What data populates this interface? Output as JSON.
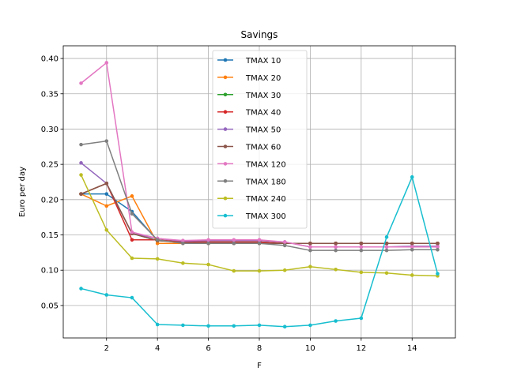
{
  "chart_data": {
    "type": "line",
    "title": "Savings",
    "xlabel": "F",
    "ylabel": "Euro per day",
    "x": [
      1,
      2,
      3,
      4,
      5,
      6,
      7,
      8,
      9,
      10,
      11,
      12,
      13,
      14,
      15
    ],
    "xlim": [
      0.3,
      15.7
    ],
    "ylim": [
      0.004,
      0.418
    ],
    "xticks": [
      2,
      4,
      6,
      8,
      10,
      12,
      14
    ],
    "yticks": [
      0.05,
      0.1,
      0.15,
      0.2,
      0.25,
      0.3,
      0.35,
      0.4
    ],
    "ytick_labels": [
      "0.05",
      "0.10",
      "0.15",
      "0.20",
      "0.25",
      "0.30",
      "0.35",
      "0.40"
    ],
    "grid": true,
    "legend_position": "upper-center",
    "series": [
      {
        "name": "TMAX 10",
        "color": "#1f77b4",
        "values": [
          0.208,
          0.208,
          0.183,
          0.142,
          0.14,
          0.14,
          0.14,
          0.14,
          0.138,
          0.138,
          0.138,
          0.138,
          0.138,
          0.138,
          0.138
        ]
      },
      {
        "name": "TMAX 20",
        "color": "#ff7f0e",
        "values": [
          0.208,
          0.191,
          0.205,
          0.138,
          0.138,
          0.138,
          0.138,
          0.138,
          0.138,
          0.138,
          0.138,
          0.138,
          0.138,
          0.138,
          0.138
        ]
      },
      {
        "name": "TMAX 30",
        "color": "#2ca02c",
        "values": [
          0.208,
          0.223,
          0.152,
          0.142,
          0.14,
          0.14,
          0.14,
          0.14,
          0.138,
          0.138,
          0.138,
          0.138,
          0.138,
          0.138,
          0.138
        ]
      },
      {
        "name": "TMAX 40",
        "color": "#d62728",
        "values": [
          0.208,
          0.223,
          0.143,
          0.143,
          0.14,
          0.14,
          0.14,
          0.14,
          0.138,
          0.138,
          0.138,
          0.138,
          0.138,
          0.138,
          0.138
        ]
      },
      {
        "name": "TMAX 50",
        "color": "#9467bd",
        "values": [
          0.252,
          0.223,
          0.152,
          0.145,
          0.141,
          0.142,
          0.142,
          0.142,
          0.14,
          0.133,
          0.133,
          0.133,
          0.133,
          0.134,
          0.134
        ]
      },
      {
        "name": "TMAX 60",
        "color": "#8c564b",
        "values": [
          0.208,
          0.223,
          0.152,
          0.142,
          0.139,
          0.138,
          0.138,
          0.138,
          0.138,
          0.138,
          0.138,
          0.138,
          0.138,
          0.138,
          0.138
        ]
      },
      {
        "name": "TMAX 120",
        "color": "#e377c2",
        "values": [
          0.365,
          0.394,
          0.154,
          0.145,
          0.142,
          0.143,
          0.143,
          0.143,
          0.14,
          0.133,
          0.133,
          0.133,
          0.133,
          0.133,
          0.133
        ]
      },
      {
        "name": "TMAX 180",
        "color": "#7f7f7f",
        "values": [
          0.278,
          0.283,
          0.18,
          0.143,
          0.138,
          0.138,
          0.138,
          0.138,
          0.135,
          0.128,
          0.128,
          0.128,
          0.128,
          0.129,
          0.129
        ]
      },
      {
        "name": "TMAX 240",
        "color": "#bcbd22",
        "values": [
          0.235,
          0.157,
          0.117,
          0.116,
          0.11,
          0.108,
          0.099,
          0.099,
          0.1,
          0.105,
          0.101,
          0.097,
          0.096,
          0.093,
          0.092
        ]
      },
      {
        "name": "TMAX 300",
        "color": "#17becf",
        "values": [
          0.074,
          0.065,
          0.061,
          0.023,
          0.022,
          0.021,
          0.021,
          0.022,
          0.02,
          0.022,
          0.028,
          0.032,
          0.147,
          0.232,
          0.095
        ]
      }
    ]
  }
}
